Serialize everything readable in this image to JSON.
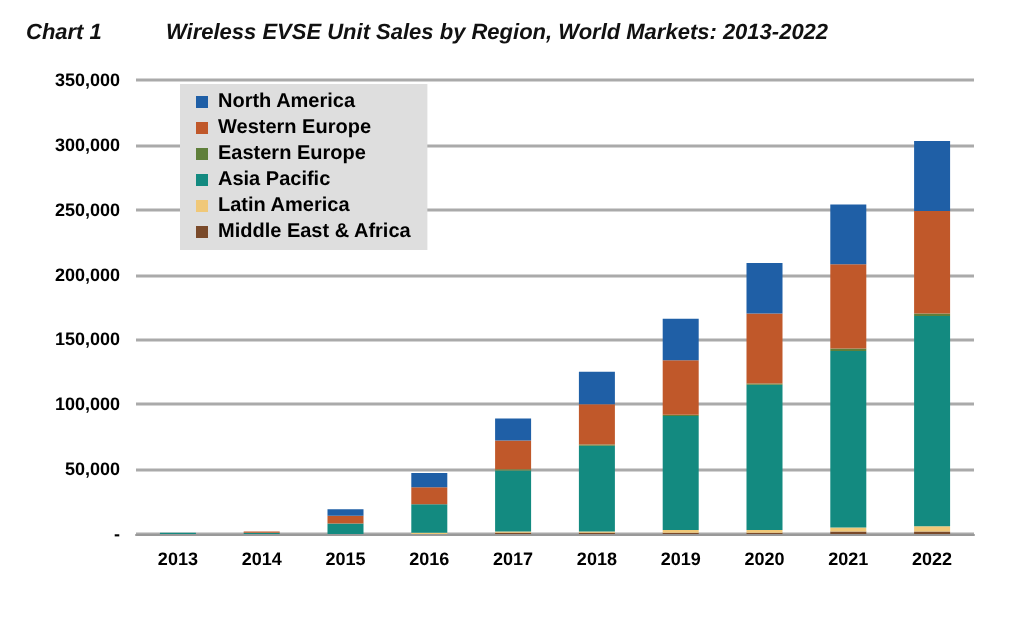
{
  "chart_data": {
    "type": "bar",
    "stacked": true,
    "subtitle": "Chart 1",
    "title": "Wireless EVSE Unit Sales by Region, World Markets: 2013-2022",
    "categories": [
      "2013",
      "2014",
      "2015",
      "2016",
      "2017",
      "2018",
      "2019",
      "2020",
      "2021",
      "2022"
    ],
    "series": [
      {
        "name": "Middle East & Africa",
        "color": "#7a4a2a",
        "values": [
          0,
          0,
          0,
          0,
          1000,
          1000,
          1000,
          1000,
          2000,
          2000
        ]
      },
      {
        "name": "Latin America",
        "color": "#f0c878",
        "values": [
          0,
          0,
          0,
          1000,
          1000,
          1000,
          2000,
          2000,
          3000,
          4000
        ]
      },
      {
        "name": "Asia Pacific",
        "color": "#138a80",
        "values": [
          1000,
          1000,
          8000,
          22000,
          47000,
          66000,
          88000,
          112000,
          136000,
          162000
        ]
      },
      {
        "name": "Eastern Europe",
        "color": "#5f7f3a",
        "values": [
          0,
          0,
          0,
          0,
          1000,
          1000,
          1000,
          1000,
          2000,
          2000
        ]
      },
      {
        "name": "Western Europe",
        "color": "#c0582a",
        "values": [
          0,
          1000,
          6000,
          13000,
          22000,
          31000,
          42000,
          54000,
          65000,
          79000
        ]
      },
      {
        "name": "North America",
        "color": "#1f5fa6",
        "values": [
          0,
          0,
          5000,
          11000,
          17000,
          25000,
          32000,
          39000,
          46000,
          54000
        ]
      }
    ],
    "ylim": [
      0,
      350000
    ],
    "yticks": [
      {
        "value": 0,
        "label": "-"
      },
      {
        "value": 50000,
        "label": "50,000"
      },
      {
        "value": 100000,
        "label": "100,000"
      },
      {
        "value": 150000,
        "label": "150,000"
      },
      {
        "value": 200000,
        "label": "200,000"
      },
      {
        "value": 250000,
        "label": "250,000"
      },
      {
        "value": 300000,
        "label": "300,000"
      },
      {
        "value": 350000,
        "label": "350,000"
      }
    ],
    "grid": "y",
    "legend": "top left"
  }
}
